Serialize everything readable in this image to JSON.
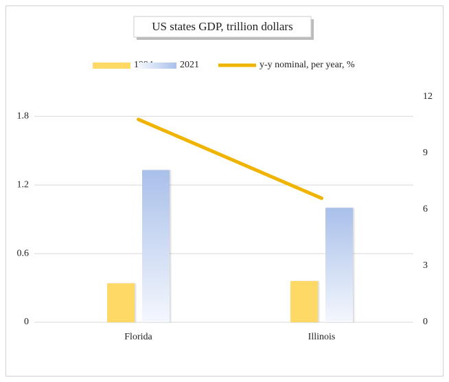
{
  "chart_data": {
    "type": "bar",
    "title": "US states GDP, trillion dollars",
    "categories": [
      "Florida",
      "Illinois"
    ],
    "series": [
      {
        "name": "1994",
        "type": "bar",
        "color": "#ffd966",
        "values": [
          0.34,
          0.36
        ]
      },
      {
        "name": "2021",
        "type": "bar",
        "color": "#a9c0ea",
        "values": [
          1.33,
          1.0
        ]
      },
      {
        "name": "y-y nominal, per year, %",
        "type": "line",
        "axis": "y2",
        "color": "#f0b400",
        "values": [
          10.8,
          6.6
        ]
      }
    ],
    "ylim": [
      0,
      1.97
    ],
    "yticks": [
      0,
      0.6,
      1.2,
      1.8
    ],
    "y2lim": [
      0,
      12
    ],
    "y2ticks": [
      0,
      3,
      6,
      9,
      12
    ],
    "grid": true,
    "legend": "top"
  }
}
